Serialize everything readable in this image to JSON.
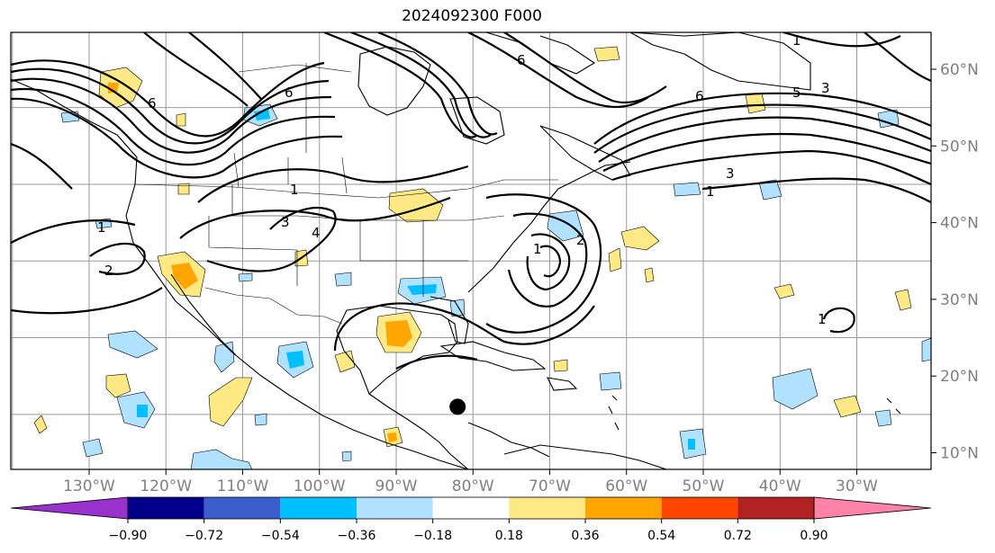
{
  "title": "2024092300 F000",
  "lon_labels": [
    "130°W",
    "120°W",
    "110°W",
    "100°W",
    "90°W",
    "80°W",
    "70°W",
    "60°W",
    "50°W",
    "40°W",
    "30°W"
  ],
  "lat_labels": [
    "60°N",
    "50°N",
    "40°N",
    "30°N",
    "20°N",
    "10°N"
  ],
  "colorbar": {
    "colors": [
      "#9932cc",
      "#00008b",
      "#3a5fcd",
      "#00bfff",
      "#b0e2ff",
      "#ffffff",
      "#ffe985",
      "#ffa500",
      "#ff4500",
      "#b22222",
      "#ff82ab"
    ],
    "tick_labels": [
      "−0.90",
      "−0.72",
      "−0.54",
      "−0.36",
      "−0.18",
      "0.18",
      "0.36",
      "0.54",
      "0.72",
      "0.90"
    ]
  },
  "contour_labels": [
    "1",
    "2",
    "3",
    "4",
    "5",
    "6"
  ],
  "marker": {
    "lon": -82,
    "lat": 16
  }
}
